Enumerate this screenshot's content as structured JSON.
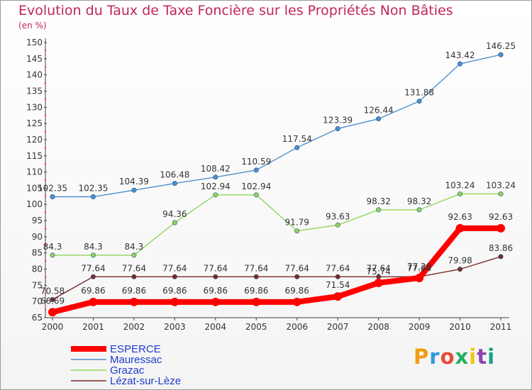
{
  "chart_data": {
    "type": "line",
    "title": "Evolution du Taux de Taxe Foncière sur les Propriétés Non Bâties",
    "ylabel": "(en %)",
    "xlabel": "",
    "x": [
      "2000",
      "2001",
      "2002",
      "2003",
      "2004",
      "2005",
      "2006",
      "2007",
      "2008",
      "2009",
      "2010",
      "2011"
    ],
    "ylim": [
      65,
      150
    ],
    "yticks": [
      65,
      70,
      75,
      80,
      85,
      90,
      95,
      100,
      105,
      110,
      115,
      120,
      125,
      130,
      135,
      140,
      145,
      150
    ],
    "grid": false,
    "legend_position": "bottom-left",
    "series": [
      {
        "name": "ESPERCE",
        "color": "#ff0000",
        "values": [
          66.69,
          69.86,
          69.86,
          69.86,
          69.86,
          69.86,
          69.86,
          71.54,
          75.74,
          77.28,
          92.63,
          92.63
        ],
        "labels": [
          "66.69",
          "69.86",
          "69.86",
          "69.86",
          "69.86",
          "69.86",
          "69.86",
          "71.54",
          "75.74",
          "77.28",
          "92.63",
          "92.63"
        ]
      },
      {
        "name": "Mauressac",
        "color": "#4d8fcf",
        "values": [
          102.35,
          102.35,
          104.39,
          106.48,
          108.42,
          110.59,
          117.54,
          123.39,
          126.44,
          131.88,
          143.42,
          146.25
        ],
        "labels": [
          "102.35",
          "102.35",
          "104.39",
          "106.48",
          "108.42",
          "110.59",
          "117.54",
          "123.39",
          "126.44",
          "131.88",
          "143.42",
          "146.25"
        ]
      },
      {
        "name": "Grazac",
        "color": "#8fd65a",
        "values": [
          84.3,
          84.3,
          84.3,
          94.36,
          102.94,
          102.94,
          91.79,
          93.63,
          98.32,
          98.32,
          103.24,
          103.24
        ],
        "labels": [
          "84.3",
          "84.3",
          "84.3",
          "94.36",
          "102.94",
          "102.94",
          "91.79",
          "93.63",
          "98.32",
          "98.32",
          "103.24",
          "103.24"
        ]
      },
      {
        "name": "Lézat-sur-Lèze",
        "color": "#7a2a2a",
        "values": [
          70.58,
          77.64,
          77.64,
          77.64,
          77.64,
          77.64,
          77.64,
          77.64,
          77.64,
          77.64,
          79.98,
          83.86
        ],
        "labels": [
          "70.58",
          "77.64",
          "77.64",
          "77.64",
          "77.64",
          "77.64",
          "77.64",
          "77.64",
          "77.64",
          "77.64",
          "79.98",
          "83.86"
        ]
      }
    ]
  },
  "logo": {
    "text": "Proxiti",
    "colors": [
      "#f39c12",
      "#3498db",
      "#e74c3c",
      "#27ae60",
      "#f1c40f",
      "#8e44ad",
      "#16a085"
    ]
  }
}
